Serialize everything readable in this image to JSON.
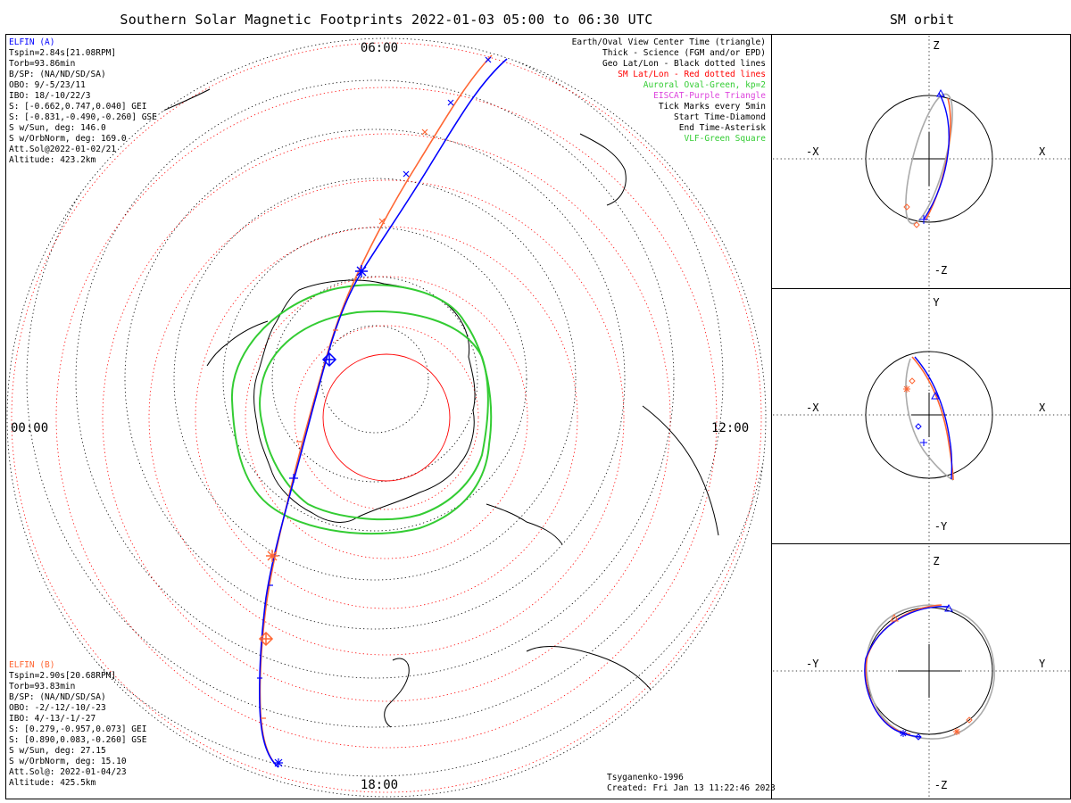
{
  "header": {
    "title": "Southern Solar Magnetic Footprints 2022-01-03 05:00 to 06:30 UTC",
    "orbit_title": "SM orbit"
  },
  "hour_labels": {
    "top": "06:00",
    "left": "00:00",
    "right": "12:00",
    "bottom": "18:00"
  },
  "elfin_a": {
    "name": "ELFIN (A)",
    "color": "#0000ff",
    "lines": [
      "Tspin=2.84s[21.08RPM]",
      "Torb=93.86min",
      "B/SP: (NA/ND/SD/SA)",
      "OBO: 9/-5/23/11",
      "IBO: 18/-10/22/3",
      "S: [-0.662,0.747,0.040] GEI",
      "S: [-0.831,-0.490,-0.260] GSE",
      "S w/Sun, deg: 146.0",
      "S w/OrbNorm, deg: 169.0",
      "Att.Sol@2022-01-02/21",
      "Altitude: 423.2km"
    ]
  },
  "elfin_b": {
    "name": "ELFIN (B)",
    "color": "#ff6633",
    "lines": [
      "Tspin=2.90s[20.68RPM]",
      "Torb=93.83min",
      "B/SP: (NA/ND/SD/SA)",
      "OBO: -2/-12/-10/-23",
      "IBO: 4/-13/-1/-27",
      "S: [0.279,-0.957,0.073] GEI",
      "S: [0.890,0.083,-0.260] GSE",
      "S w/Sun, deg: 27.15",
      "S w/OrbNorm, deg: 15.10",
      "Att.Sol@: 2022-01-04/23",
      "Altitude: 425.5km"
    ]
  },
  "legend": [
    {
      "text": "Earth/Oval View Center Time (triangle)",
      "color": "#000000"
    },
    {
      "text": "Thick - Science (FGM and/or EPD)",
      "color": "#000000"
    },
    {
      "text": "Geo Lat/Lon - Black dotted lines",
      "color": "#000000"
    },
    {
      "text": "SM Lat/Lon - Red dotted lines",
      "color": "#ff0000"
    },
    {
      "text": "Auroral Oval-Green, kp=2",
      "color": "#33cc33"
    },
    {
      "text": "EISCAT-Purple Triangle",
      "color": "#dd44dd"
    },
    {
      "text": "Tick Marks every 5min",
      "color": "#000000"
    },
    {
      "text": "Start Time-Diamond",
      "color": "#000000"
    },
    {
      "text": "End Time-Asterisk",
      "color": "#000000"
    },
    {
      "text": "VLF-Green Square",
      "color": "#33cc33"
    }
  ],
  "footer": {
    "model": "Tsyganenko-1996",
    "created": "Created: Fri Jan 13 11:22:46 2023"
  },
  "orbit_panels": [
    {
      "left": "-X",
      "right": "X",
      "top": "Z",
      "bottom": "-Z"
    },
    {
      "left": "-X",
      "right": "X",
      "top": "Y",
      "bottom": "-Y"
    },
    {
      "left": "-Y",
      "right": "Y",
      "top": "Z",
      "bottom": "-Z"
    }
  ],
  "colors": {
    "elfin_a": "#0000ff",
    "elfin_b": "#ff6633",
    "oval": "#33cc33",
    "sm_grid": "#ff0000",
    "geo_grid": "#000000",
    "orbit_gray": "#aaaaaa"
  }
}
